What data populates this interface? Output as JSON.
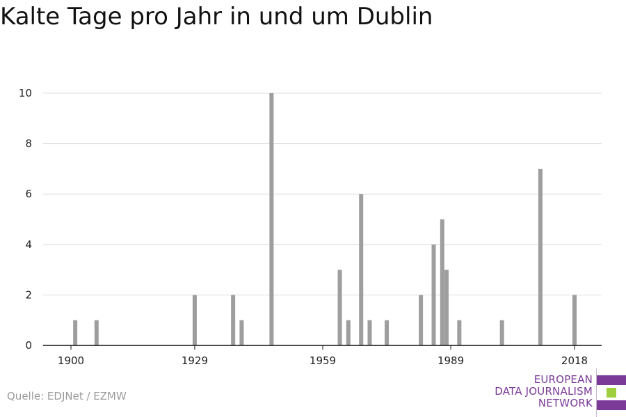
{
  "title": "Kalte Tage pro Jahr in und um Dublin",
  "source": "Quelle: EDJNet / EZMW",
  "logo": {
    "lines": [
      "EUROPEAN",
      "DATA JOURNALISM",
      "NETWORK"
    ],
    "colors": {
      "text": "#7b3a98",
      "bar_purple": "#7b3a98",
      "bar_green": "#9dcf3f"
    }
  },
  "chart_data": {
    "type": "bar",
    "bar_color": "#9e9e9e",
    "grid": true,
    "ylim": [
      0,
      10
    ],
    "yticks": [
      0,
      2,
      4,
      6,
      8,
      10
    ],
    "xticks": [
      1900,
      1929,
      1959,
      1989,
      2018
    ],
    "xlabel": "",
    "ylabel": "",
    "points": [
      {
        "year": 1901,
        "value": 1
      },
      {
        "year": 1906,
        "value": 1
      },
      {
        "year": 1929,
        "value": 2
      },
      {
        "year": 1938,
        "value": 2
      },
      {
        "year": 1940,
        "value": 1
      },
      {
        "year": 1947,
        "value": 10
      },
      {
        "year": 1963,
        "value": 3
      },
      {
        "year": 1965,
        "value": 1
      },
      {
        "year": 1968,
        "value": 6
      },
      {
        "year": 1970,
        "value": 1
      },
      {
        "year": 1974,
        "value": 1
      },
      {
        "year": 1982,
        "value": 2
      },
      {
        "year": 1985,
        "value": 4
      },
      {
        "year": 1987,
        "value": 5
      },
      {
        "year": 1988,
        "value": 3
      },
      {
        "year": 1991,
        "value": 1
      },
      {
        "year": 2001,
        "value": 1
      },
      {
        "year": 2010,
        "value": 7
      },
      {
        "year": 2018,
        "value": 2
      }
    ]
  }
}
